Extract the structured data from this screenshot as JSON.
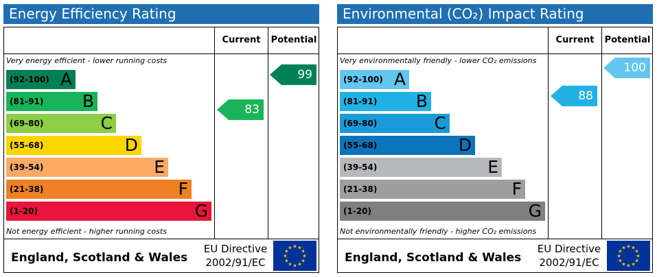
{
  "energy": {
    "title": "Energy Efficiency Rating",
    "col_current": "Current",
    "col_potential": "Potential",
    "top_note": "Very energy efficient - lower running costs",
    "bottom_note": "Not energy efficient - higher running costs",
    "bands": [
      {
        "range": "(92-100)",
        "letter": "A",
        "color": "#008054"
      },
      {
        "range": "(81-91)",
        "letter": "B",
        "color": "#19b459"
      },
      {
        "range": "(69-80)",
        "letter": "C",
        "color": "#8dce46"
      },
      {
        "range": "(55-68)",
        "letter": "D",
        "color": "#ffd500"
      },
      {
        "range": "(39-54)",
        "letter": "E",
        "color": "#fcaa65"
      },
      {
        "range": "(21-38)",
        "letter": "F",
        "color": "#ef8023"
      },
      {
        "range": "(1-20)",
        "letter": "G",
        "color": "#e9153b"
      }
    ],
    "current": {
      "value": "83",
      "band": "B",
      "color": "#19b459"
    },
    "potential": {
      "value": "99",
      "band": "A",
      "color": "#008054"
    },
    "region": "England, Scotland & Wales",
    "directive_line1": "EU Directive",
    "directive_line2": "2002/91/EC"
  },
  "environment": {
    "title": "Environmental (CO₂) Impact Rating",
    "col_current": "Current",
    "col_potential": "Potential",
    "top_note": "Very environmentally friendly - lower CO₂ emissions",
    "bottom_note": "Not environmentally friendly - higher CO₂ emissions",
    "bands": [
      {
        "range": "(92-100)",
        "letter": "A",
        "color": "#63c6f0"
      },
      {
        "range": "(81-91)",
        "letter": "B",
        "color": "#22b1e5"
      },
      {
        "range": "(69-80)",
        "letter": "C",
        "color": "#1a9bd9"
      },
      {
        "range": "(55-68)",
        "letter": "D",
        "color": "#0b74bb"
      },
      {
        "range": "(39-54)",
        "letter": "E",
        "color": "#b7b8ba"
      },
      {
        "range": "(21-38)",
        "letter": "F",
        "color": "#9d9ea0"
      },
      {
        "range": "(1-20)",
        "letter": "G",
        "color": "#7f7f81"
      }
    ],
    "current": {
      "value": "88",
      "band": "B",
      "color": "#22b1e5"
    },
    "potential": {
      "value": "100",
      "band": "A",
      "color": "#63c6f0"
    },
    "region": "England, Scotland & Wales",
    "directive_line1": "EU Directive",
    "directive_line2": "2002/91/EC"
  }
}
